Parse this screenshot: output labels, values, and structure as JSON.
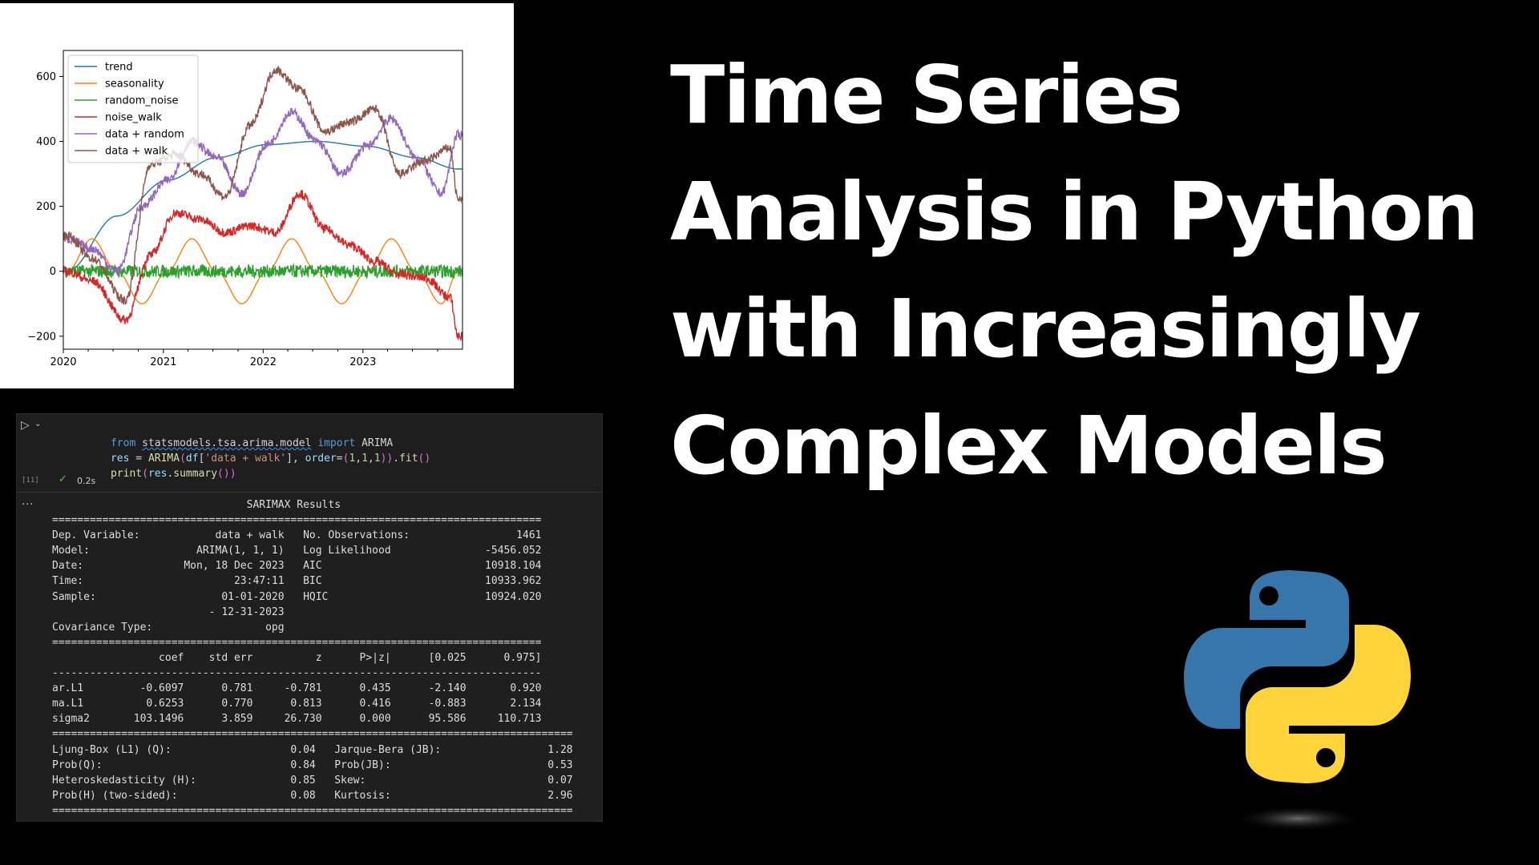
{
  "chart_data": {
    "type": "line",
    "x_tick_labels": [
      "2020",
      "2021",
      "2022",
      "2023"
    ],
    "y_tick_labels": [
      "600",
      "400",
      "200",
      "0",
      "−200"
    ],
    "xlim": [
      "2020-01-01",
      "2023-12-31"
    ],
    "ylim": [
      -240,
      680
    ],
    "grid": false,
    "legend_position": "top-left",
    "series": [
      {
        "name": "trend",
        "color": "#1f77b4",
        "x": [
          "2020-01",
          "2020-07",
          "2021-01",
          "2021-07",
          "2022-01",
          "2022-07",
          "2023-01",
          "2023-07",
          "2023-12"
        ],
        "y": [
          0,
          170,
          280,
          350,
          390,
          400,
          385,
          350,
          315
        ]
      },
      {
        "name": "seasonality",
        "color": "#ff7f0e",
        "x": [
          "2020-01",
          "2020-04",
          "2020-07",
          "2020-10",
          "2021-01",
          "2021-04",
          "2021-07",
          "2021-10",
          "2022-01",
          "2022-04",
          "2022-07",
          "2022-10",
          "2023-01",
          "2023-04",
          "2023-07",
          "2023-10",
          "2023-12"
        ],
        "y": [
          0,
          100,
          0,
          -100,
          0,
          100,
          0,
          -100,
          0,
          100,
          0,
          -100,
          0,
          100,
          0,
          -100,
          0
        ]
      },
      {
        "name": "random_noise",
        "color": "#2ca02c",
        "x": [
          "2020-01",
          "2020-07",
          "2021-01",
          "2021-07",
          "2022-01",
          "2022-07",
          "2023-01",
          "2023-07",
          "2023-12"
        ],
        "y": [
          0,
          0,
          0,
          0,
          0,
          0,
          0,
          0,
          0
        ],
        "amplitude": 20
      },
      {
        "name": "noise_walk",
        "color": "#d62728",
        "x": [
          "2020-01",
          "2020-04",
          "2020-08",
          "2020-11",
          "2021-02",
          "2021-05",
          "2021-08",
          "2021-11",
          "2022-02",
          "2022-05",
          "2022-08",
          "2022-11",
          "2023-02",
          "2023-05",
          "2023-08",
          "2023-11",
          "2023-12"
        ],
        "y": [
          0,
          -30,
          -150,
          50,
          180,
          160,
          120,
          140,
          120,
          240,
          130,
          80,
          30,
          -10,
          -20,
          -80,
          -200
        ]
      },
      {
        "name": "data + random",
        "color": "#9467bd",
        "x": [
          "2020-01",
          "2020-04",
          "2020-07",
          "2020-10",
          "2021-01",
          "2021-04",
          "2021-07",
          "2021-10",
          "2022-01",
          "2022-04",
          "2022-07",
          "2022-10",
          "2023-01",
          "2023-04",
          "2023-07",
          "2023-10",
          "2023-12"
        ],
        "y": [
          100,
          70,
          0,
          200,
          280,
          400,
          350,
          240,
          390,
          490,
          400,
          300,
          385,
          470,
          350,
          240,
          420
        ]
      },
      {
        "name": "data + walk",
        "color": "#8c564b",
        "x": [
          "2020-01",
          "2020-04",
          "2020-08",
          "2020-11",
          "2021-02",
          "2021-05",
          "2021-08",
          "2021-11",
          "2022-02",
          "2022-05",
          "2022-08",
          "2022-11",
          "2023-02",
          "2023-05",
          "2023-08",
          "2023-11",
          "2023-12"
        ],
        "y": [
          110,
          40,
          -90,
          330,
          360,
          300,
          230,
          450,
          620,
          560,
          430,
          460,
          500,
          300,
          340,
          380,
          220
        ]
      }
    ]
  },
  "notebook": {
    "run_icon": "play-icon",
    "chevron_icon": "chevron-down-icon",
    "code_lines": [
      "from statsmodels.tsa.arima.model import ARIMA",
      "res = ARIMA(df['data + walk'], order=(1,1,1)).fit()",
      "print(res.summary())"
    ],
    "exec_count": "[11]",
    "exec_time": "0.2s",
    "status_icon": "check-icon",
    "output_menu": "...",
    "summary_text": "                               SARIMAX Results                                \n==============================================================================\nDep. Variable:            data + walk   No. Observations:                 1461\nModel:                 ARIMA(1, 1, 1)   Log Likelihood               -5456.052\nDate:                Mon, 18 Dec 2023   AIC                          10918.104\nTime:                        23:47:11   BIC                          10933.962\nSample:                    01-01-2020   HQIC                         10924.020\n                         - 12-31-2023                                         \nCovariance Type:                  opg                                         \n==============================================================================\n                 coef    std err          z      P>|z|      [0.025      0.975]\n------------------------------------------------------------------------------\nar.L1         -0.6097      0.781     -0.781      0.435      -2.140       0.920\nma.L1          0.6253      0.770      0.813      0.416      -0.883       2.134\nsigma2       103.1496      3.859     26.730      0.000      95.586     110.713\n===================================================================================\nLjung-Box (L1) (Q):                   0.04   Jarque-Bera (JB):                 1.28\nProb(Q):                              0.84   Prob(JB):                         0.53\nHeteroskedasticity (H):               0.85   Skew:                             0.07\nProb(H) (two-sided):                  0.08   Kurtosis:                         2.96\n==================================================================================="
  },
  "title_lines": [
    "Time Series",
    "Analysis in Python",
    "with Increasingly",
    "Complex Models"
  ],
  "logo": {
    "name": "python-logo",
    "colors": {
      "blue": "#3776ab",
      "yellow": "#ffd43b"
    }
  }
}
